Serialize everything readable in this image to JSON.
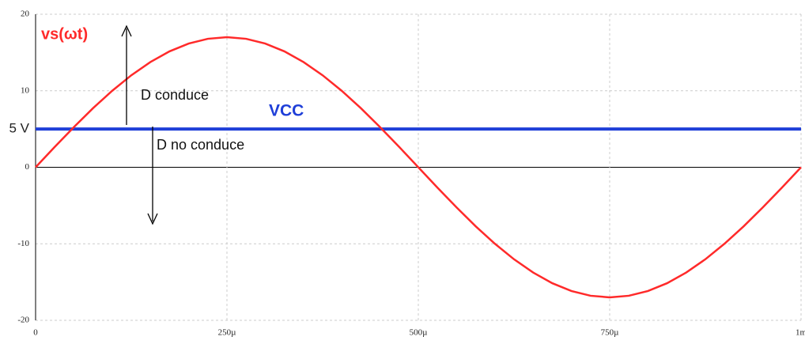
{
  "chart_data": {
    "type": "line",
    "x": [
      0,
      2.5e-05,
      5e-05,
      7.5e-05,
      0.0001,
      0.000125,
      0.00015,
      0.000175,
      0.0002,
      0.000225,
      0.00025,
      0.000275,
      0.0003,
      0.000325,
      0.00035,
      0.000375,
      0.0004,
      0.000425,
      0.00045,
      0.000475,
      0.0005,
      0.000525,
      0.00055,
      0.000575,
      0.0006,
      0.000625,
      0.00065,
      0.000675,
      0.0007,
      0.000725,
      0.00075,
      0.000775,
      0.0008,
      0.000825,
      0.00085,
      0.000875,
      0.0009,
      0.000925,
      0.00095,
      0.000975,
      0.001
    ],
    "series": [
      {
        "name": "vs(ωt)",
        "color": "#ff2a2a",
        "values": [
          0,
          2.66,
          5.25,
          7.72,
          9.99,
          12.02,
          13.75,
          15.15,
          16.17,
          16.79,
          17,
          16.79,
          16.17,
          15.15,
          13.75,
          12.02,
          9.99,
          7.72,
          5.25,
          2.66,
          0,
          -2.66,
          -5.25,
          -7.72,
          -9.99,
          -12.02,
          -13.75,
          -15.15,
          -16.17,
          -16.79,
          -17,
          -16.79,
          -16.17,
          -15.15,
          -13.75,
          -12.02,
          -9.99,
          -7.72,
          -5.25,
          -2.66,
          0
        ]
      }
    ],
    "hline": {
      "label": "VCC",
      "value": 5,
      "color": "#1f3fd8"
    },
    "annotations": [
      "D conduce",
      "D no conduce"
    ],
    "xlim": [
      0,
      0.001
    ],
    "xticks": [
      0,
      {
        "value": 0.00025,
        "label": "250µ"
      },
      {
        "value": 0.0005,
        "label": "500µ"
      },
      {
        "value": 0.00075,
        "label": "750µ"
      },
      {
        "value": 0.001,
        "label": "1m"
      }
    ],
    "ylim": [
      -20,
      20
    ],
    "yticks": [
      -20,
      -10,
      0,
      {
        "value": 5,
        "label": "5 V"
      },
      10,
      20
    ],
    "grid": true
  }
}
